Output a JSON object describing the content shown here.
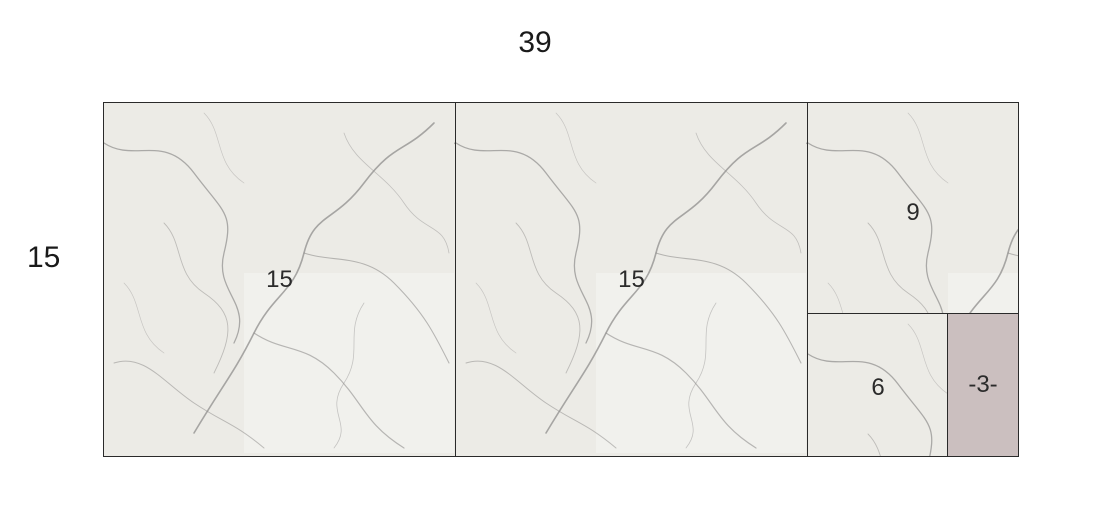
{
  "diagram": {
    "width_label": "39",
    "height_label": "15",
    "tiles": [
      {
        "label": "15",
        "material": "marble"
      },
      {
        "label": "15",
        "material": "marble"
      },
      {
        "label": "9",
        "material": "marble"
      },
      {
        "label": "6",
        "material": "marble"
      },
      {
        "label": "-3-",
        "material": "filler"
      }
    ]
  },
  "colors": {
    "marble_base": "#ecebe6",
    "marble_vein": "#8f8d8c",
    "filler": "#cbbfbf",
    "border": "#2a2a2a"
  }
}
